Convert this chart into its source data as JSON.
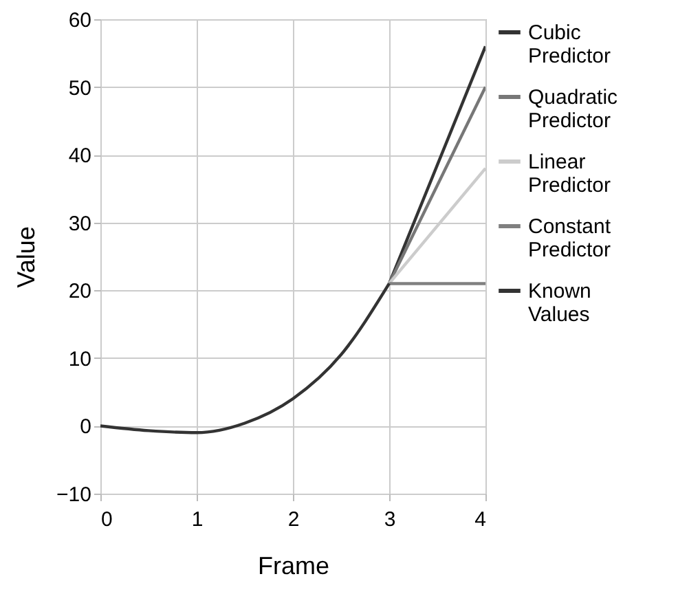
{
  "chart_data": {
    "type": "line",
    "xlabel": "Frame",
    "ylabel": "Value",
    "xlim": [
      0,
      4
    ],
    "xticks": [
      0,
      1,
      2,
      3,
      4
    ],
    "ylim": [
      -10,
      60
    ],
    "yticks": [
      -10,
      0,
      10,
      20,
      30,
      40,
      50,
      60
    ],
    "grid": true,
    "legend": "right",
    "marker": "none",
    "line_style": "solid",
    "series": [
      {
        "name": "Cubic Predictor",
        "color": "#333333",
        "x": [
          3,
          4
        ],
        "values": [
          21,
          56
        ]
      },
      {
        "name": "Quadratic Predictor",
        "color": "#777777",
        "x": [
          3,
          4
        ],
        "values": [
          21,
          50
        ]
      },
      {
        "name": "Linear Predictor",
        "color": "#cccccc",
        "x": [
          3,
          4
        ],
        "values": [
          21,
          38
        ]
      },
      {
        "name": "Constant Predictor",
        "color": "#808080",
        "x": [
          3,
          4
        ],
        "values": [
          21,
          21
        ]
      },
      {
        "name": "Known Values",
        "color": "#333333",
        "x": [
          0,
          0.5,
          1,
          1.5,
          2,
          2.5,
          3
        ],
        "values": [
          0,
          -0.7,
          -1,
          0.4,
          4,
          10.5,
          21
        ]
      }
    ]
  }
}
